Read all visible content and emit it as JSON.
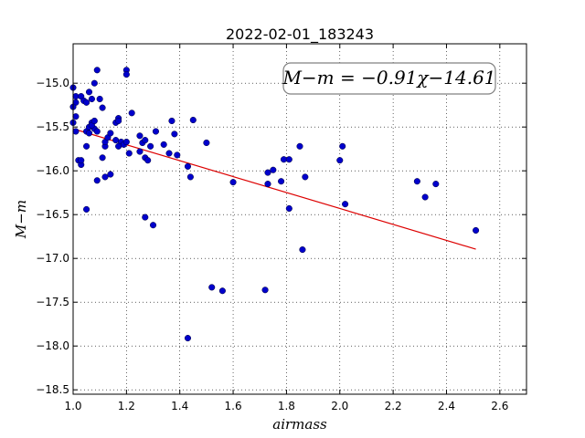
{
  "chart_data": {
    "type": "scatter",
    "title": "2022-02-01_183243",
    "xlabel": "airmass",
    "ylabel": "M−m",
    "xlim": [
      1.0,
      2.7
    ],
    "ylim": [
      -18.55,
      -14.55
    ],
    "xticks": [
      "1.0",
      "1.2",
      "1.4",
      "1.6",
      "1.8",
      "2.0",
      "2.2",
      "2.4",
      "2.6"
    ],
    "xtick_values": [
      1.0,
      1.2,
      1.4,
      1.6,
      1.8,
      2.0,
      2.2,
      2.4,
      2.6
    ],
    "yticks": [
      "−15.0",
      "−15.5",
      "−16.0",
      "−16.5",
      "−17.0",
      "−17.5",
      "−18.0",
      "−18.5"
    ],
    "ytick_values": [
      -15.0,
      -15.5,
      -16.0,
      -16.5,
      -17.0,
      -17.5,
      -18.0,
      -18.5
    ],
    "grid": true,
    "annotation": "M−m = −0.91χ−14.61",
    "point_color": "#0000cc",
    "line_color": "#dd0000",
    "fit": {
      "slope": -0.91,
      "intercept": -14.61,
      "x_range": [
        1.0,
        2.51
      ]
    },
    "points": [
      [
        1.0,
        -15.05
      ],
      [
        1.01,
        -15.15
      ],
      [
        1.01,
        -15.22
      ],
      [
        1.0,
        -15.27
      ],
      [
        1.01,
        -15.38
      ],
      [
        1.0,
        -15.45
      ],
      [
        1.01,
        -15.55
      ],
      [
        1.02,
        -15.88
      ],
      [
        1.03,
        -15.93
      ],
      [
        1.03,
        -15.88
      ],
      [
        1.03,
        -15.15
      ],
      [
        1.04,
        -15.2
      ],
      [
        1.05,
        -15.22
      ],
      [
        1.06,
        -15.1
      ],
      [
        1.07,
        -15.18
      ],
      [
        1.08,
        -15.0
      ],
      [
        1.09,
        -14.85
      ],
      [
        1.1,
        -15.18
      ],
      [
        1.05,
        -15.55
      ],
      [
        1.06,
        -15.5
      ],
      [
        1.07,
        -15.45
      ],
      [
        1.08,
        -15.52
      ],
      [
        1.06,
        -15.57
      ],
      [
        1.07,
        -15.48
      ],
      [
        1.08,
        -15.43
      ],
      [
        1.09,
        -15.55
      ],
      [
        1.11,
        -15.28
      ],
      [
        1.12,
        -15.72
      ],
      [
        1.12,
        -15.67
      ],
      [
        1.13,
        -15.62
      ],
      [
        1.14,
        -15.57
      ],
      [
        1.05,
        -15.72
      ],
      [
        1.05,
        -16.44
      ],
      [
        1.09,
        -16.11
      ],
      [
        1.12,
        -16.07
      ],
      [
        1.14,
        -16.04
      ],
      [
        1.11,
        -15.85
      ],
      [
        1.16,
        -15.45
      ],
      [
        1.17,
        -15.4
      ],
      [
        1.17,
        -15.43
      ],
      [
        1.16,
        -15.65
      ],
      [
        1.18,
        -15.67
      ],
      [
        1.17,
        -15.72
      ],
      [
        1.19,
        -15.7
      ],
      [
        1.2,
        -15.67
      ],
      [
        1.2,
        -14.85
      ],
      [
        1.2,
        -14.9
      ],
      [
        1.22,
        -15.34
      ],
      [
        1.21,
        -15.8
      ],
      [
        1.25,
        -15.6
      ],
      [
        1.26,
        -15.68
      ],
      [
        1.25,
        -15.78
      ],
      [
        1.27,
        -15.65
      ],
      [
        1.27,
        -15.85
      ],
      [
        1.28,
        -15.88
      ],
      [
        1.29,
        -15.72
      ],
      [
        1.31,
        -15.55
      ],
      [
        1.27,
        -16.53
      ],
      [
        1.3,
        -16.62
      ],
      [
        1.34,
        -15.7
      ],
      [
        1.36,
        -15.8
      ],
      [
        1.37,
        -15.43
      ],
      [
        1.38,
        -15.58
      ],
      [
        1.39,
        -15.82
      ],
      [
        1.43,
        -15.95
      ],
      [
        1.44,
        -16.07
      ],
      [
        1.45,
        -15.42
      ],
      [
        1.5,
        -15.68
      ],
      [
        1.52,
        -17.33
      ],
      [
        1.56,
        -17.37
      ],
      [
        1.6,
        -16.13
      ],
      [
        1.72,
        -17.36
      ],
      [
        1.73,
        -16.02
      ],
      [
        1.75,
        -15.99
      ],
      [
        1.73,
        -16.15
      ],
      [
        1.78,
        -16.12
      ],
      [
        1.79,
        -15.87
      ],
      [
        1.81,
        -15.87
      ],
      [
        1.81,
        -16.43
      ],
      [
        1.85,
        -15.72
      ],
      [
        1.86,
        -16.9
      ],
      [
        1.87,
        -16.07
      ],
      [
        2.0,
        -15.88
      ],
      [
        2.01,
        -15.72
      ],
      [
        2.02,
        -16.38
      ],
      [
        2.29,
        -16.12
      ],
      [
        2.32,
        -16.3
      ],
      [
        2.36,
        -16.15
      ],
      [
        2.51,
        -16.68
      ],
      [
        1.43,
        -17.91
      ]
    ]
  }
}
